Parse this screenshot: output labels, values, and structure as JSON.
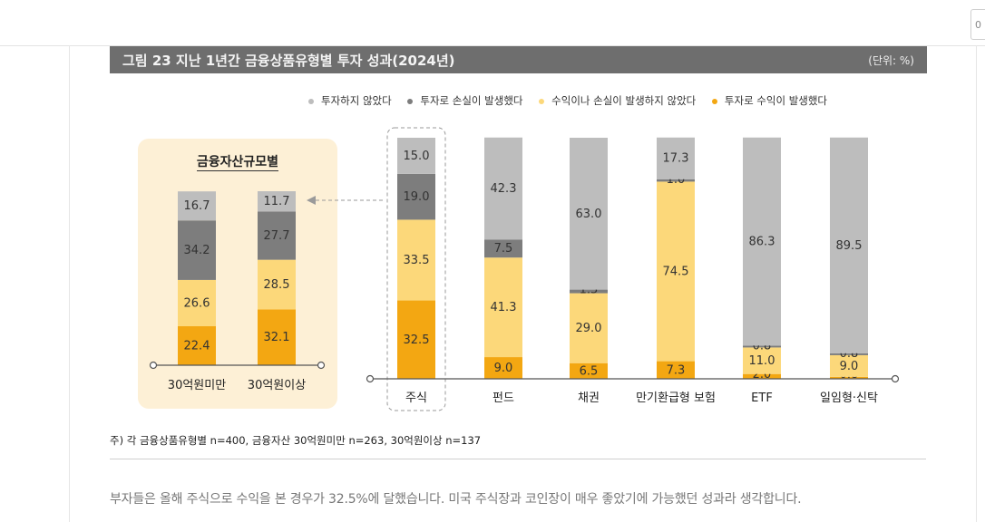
{
  "top_input": {
    "value": "0"
  },
  "figure": {
    "title": "그림 23  지난 1년간 금융상품유형별 투자 성과(2024년)",
    "unit": "(단위: %)",
    "footnote": "주) 각 금융상품유형별 n=400, 금융자산 30억원미만 n=263, 30억원이상 n=137"
  },
  "legend": [
    {
      "label": "투자하지 않았다",
      "color": "#bdbdbd"
    },
    {
      "label": "투자로 손실이 발생했다",
      "color": "#8a8a8a"
    },
    {
      "label": "수익이나 손실이 발생하지 않았다",
      "color": "#fcd87a"
    },
    {
      "label": "투자로 수익이 발생했다",
      "color": "#f3a712"
    }
  ],
  "chart_data": [
    {
      "type": "bar",
      "stacked": true,
      "title": "금융자산규모별",
      "categories": [
        "30억원미만",
        "30억원이상"
      ],
      "series": [
        {
          "name": "투자로 수익이 발생했다",
          "values": [
            22.4,
            32.1
          ]
        },
        {
          "name": "수익이나 손실이 발생하지 않았다",
          "values": [
            26.6,
            28.5
          ]
        },
        {
          "name": "투자로 손실이 발생했다",
          "values": [
            34.2,
            27.7
          ]
        },
        {
          "name": "투자하지 않았다",
          "values": [
            16.7,
            11.7
          ]
        }
      ],
      "ylim": [
        0,
        100
      ],
      "xlabel": "",
      "ylabel": ""
    },
    {
      "type": "bar",
      "stacked": true,
      "title": "",
      "categories": [
        "주식",
        "펀드",
        "채권",
        "만기환급형 보험",
        "ETF",
        "일임형·신탁"
      ],
      "series": [
        {
          "name": "투자로 수익이 발생했다",
          "values": [
            32.5,
            9.0,
            6.5,
            7.3,
            2.0,
            0.8
          ]
        },
        {
          "name": "수익이나 손실이 발생하지 않았다",
          "values": [
            33.5,
            41.3,
            29.0,
            74.5,
            11.0,
            9.0
          ]
        },
        {
          "name": "투자로 손실이 발생했다",
          "values": [
            19.0,
            7.5,
            1.5,
            1.0,
            0.8,
            0.8
          ]
        },
        {
          "name": "투자하지 않았다",
          "values": [
            15.0,
            42.3,
            63.0,
            17.3,
            86.3,
            89.5
          ]
        }
      ],
      "ylim": [
        0,
        100
      ],
      "xlabel": "",
      "ylabel": ""
    }
  ],
  "body_text": "부자들은 올해 주식으로 수익을 본 경우가 32.5%에 달했습니다. 미국 주식장과 코인장이 매우 좋았기에 가능했던 성과라 생각합니다."
}
